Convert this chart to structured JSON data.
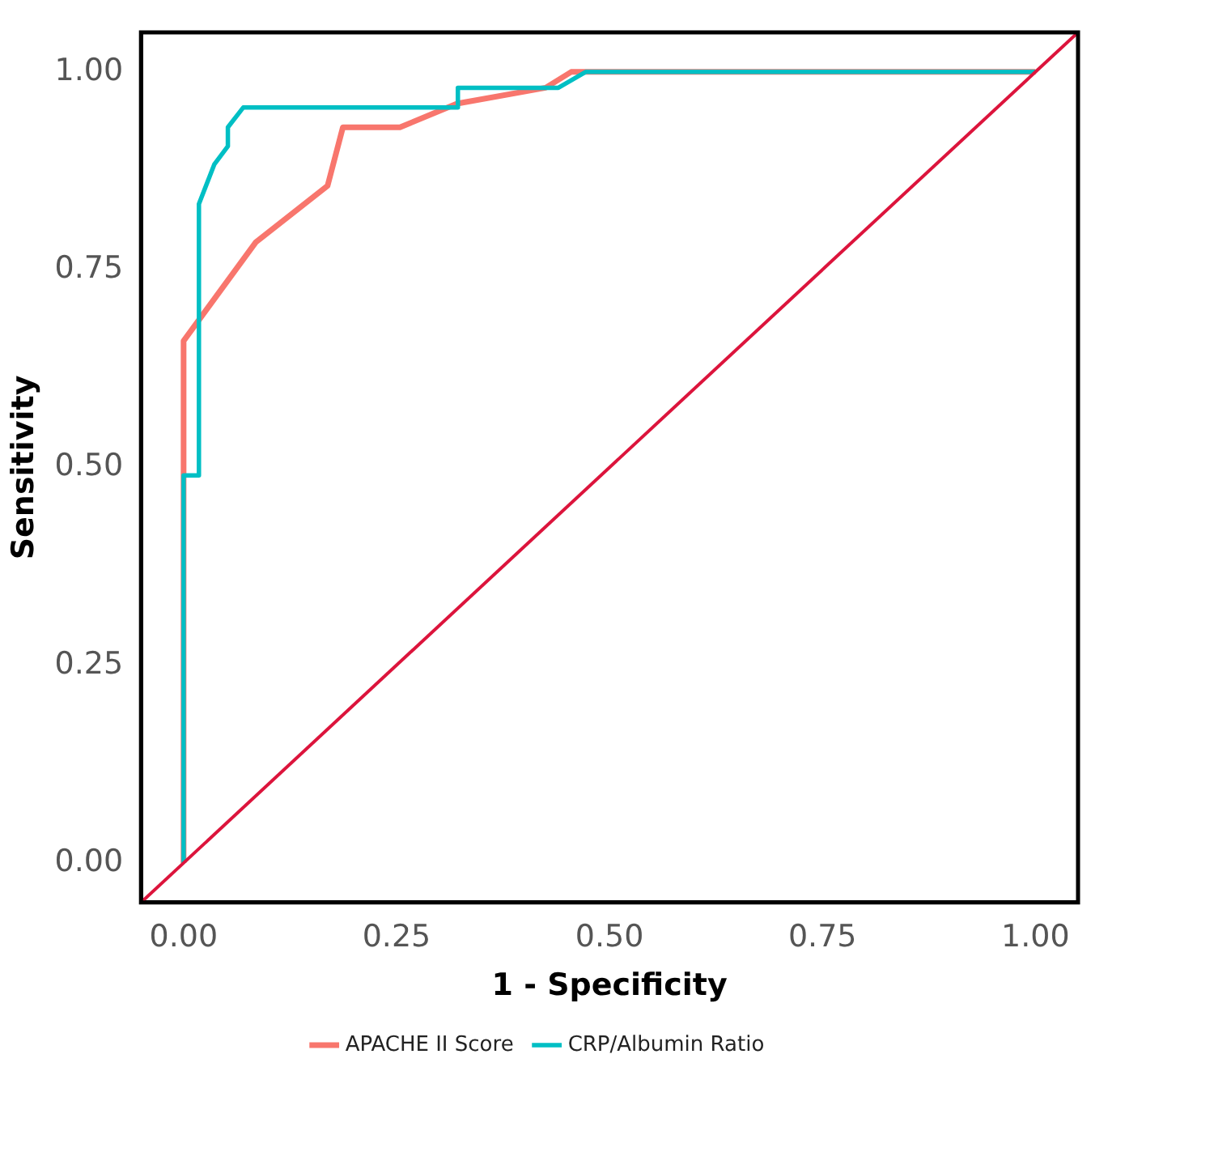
{
  "chart_data": {
    "type": "line",
    "xlabel": "1 - Specificity",
    "ylabel": "Sensitivity",
    "xlim": [
      -0.05,
      1.05
    ],
    "ylim": [
      -0.05,
      1.05
    ],
    "xticks": [
      {
        "value": 0,
        "label": "0.00"
      },
      {
        "value": 0.25,
        "label": "0.25"
      },
      {
        "value": 0.5,
        "label": "0.50"
      },
      {
        "value": 0.75,
        "label": "0.75"
      },
      {
        "value": 1,
        "label": "1.00"
      }
    ],
    "yticks": [
      {
        "value": 0,
        "label": "0.00"
      },
      {
        "value": 0.25,
        "label": "0.25"
      },
      {
        "value": 0.5,
        "label": "0.50"
      },
      {
        "value": 0.75,
        "label": "0.75"
      },
      {
        "value": 1,
        "label": "1.00"
      }
    ],
    "grid": false,
    "legend": "bottom",
    "marker": "none",
    "line_style": "solid",
    "series": [
      {
        "name": "APACHE II Score",
        "color": "#f8766d",
        "x": [
          0,
          0,
          0.085,
          0.169,
          0.187,
          0.254,
          0.321,
          0.425,
          0.455,
          1
        ],
        "values": [
          0,
          0.66,
          0.785,
          0.856,
          0.93,
          0.93,
          0.96,
          0.98,
          1,
          1
        ]
      },
      {
        "name": "CRP/Albumin Ratio",
        "color": "#00bfc4",
        "x": [
          0,
          0,
          0.018,
          0.018,
          0.036,
          0.052,
          0.052,
          0.07,
          0.322,
          0.322,
          0.44,
          0.472,
          1
        ],
        "values": [
          0,
          0.49,
          0.49,
          0.833,
          0.883,
          0.906,
          0.93,
          0.955,
          0.955,
          0.98,
          0.98,
          1,
          1
        ]
      },
      {
        "color": "#dc143c",
        "x": [
          -0.05,
          1.05
        ],
        "values": [
          -0.05,
          1.05
        ]
      }
    ]
  }
}
